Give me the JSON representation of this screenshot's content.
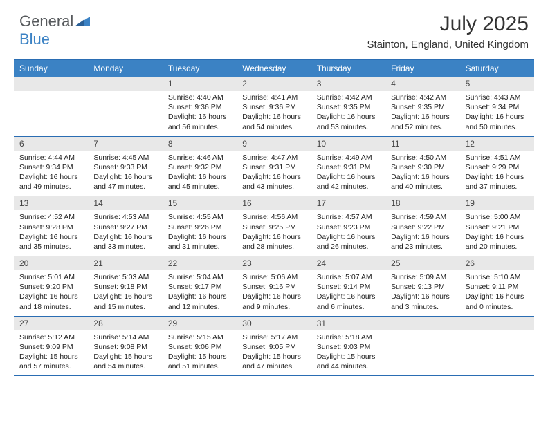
{
  "colors": {
    "header_blue": "#3b82c4",
    "border_blue": "#2a6db3",
    "daynum_bg": "#e8e8e8",
    "text_dark": "#333333",
    "logo_gray": "#56595c"
  },
  "logo": {
    "text_general": "General",
    "text_blue": "Blue"
  },
  "title": {
    "month": "July 2025",
    "location": "Stainton, England, United Kingdom"
  },
  "weekdays": [
    "Sunday",
    "Monday",
    "Tuesday",
    "Wednesday",
    "Thursday",
    "Friday",
    "Saturday"
  ],
  "weeks": [
    {
      "days": [
        {
          "num": "",
          "sunrise": "",
          "sunset": "",
          "daylight": ""
        },
        {
          "num": "",
          "sunrise": "",
          "sunset": "",
          "daylight": ""
        },
        {
          "num": "1",
          "sunrise": "Sunrise: 4:40 AM",
          "sunset": "Sunset: 9:36 PM",
          "daylight": "Daylight: 16 hours and 56 minutes."
        },
        {
          "num": "2",
          "sunrise": "Sunrise: 4:41 AM",
          "sunset": "Sunset: 9:36 PM",
          "daylight": "Daylight: 16 hours and 54 minutes."
        },
        {
          "num": "3",
          "sunrise": "Sunrise: 4:42 AM",
          "sunset": "Sunset: 9:35 PM",
          "daylight": "Daylight: 16 hours and 53 minutes."
        },
        {
          "num": "4",
          "sunrise": "Sunrise: 4:42 AM",
          "sunset": "Sunset: 9:35 PM",
          "daylight": "Daylight: 16 hours and 52 minutes."
        },
        {
          "num": "5",
          "sunrise": "Sunrise: 4:43 AM",
          "sunset": "Sunset: 9:34 PM",
          "daylight": "Daylight: 16 hours and 50 minutes."
        }
      ]
    },
    {
      "days": [
        {
          "num": "6",
          "sunrise": "Sunrise: 4:44 AM",
          "sunset": "Sunset: 9:34 PM",
          "daylight": "Daylight: 16 hours and 49 minutes."
        },
        {
          "num": "7",
          "sunrise": "Sunrise: 4:45 AM",
          "sunset": "Sunset: 9:33 PM",
          "daylight": "Daylight: 16 hours and 47 minutes."
        },
        {
          "num": "8",
          "sunrise": "Sunrise: 4:46 AM",
          "sunset": "Sunset: 9:32 PM",
          "daylight": "Daylight: 16 hours and 45 minutes."
        },
        {
          "num": "9",
          "sunrise": "Sunrise: 4:47 AM",
          "sunset": "Sunset: 9:31 PM",
          "daylight": "Daylight: 16 hours and 43 minutes."
        },
        {
          "num": "10",
          "sunrise": "Sunrise: 4:49 AM",
          "sunset": "Sunset: 9:31 PM",
          "daylight": "Daylight: 16 hours and 42 minutes."
        },
        {
          "num": "11",
          "sunrise": "Sunrise: 4:50 AM",
          "sunset": "Sunset: 9:30 PM",
          "daylight": "Daylight: 16 hours and 40 minutes."
        },
        {
          "num": "12",
          "sunrise": "Sunrise: 4:51 AM",
          "sunset": "Sunset: 9:29 PM",
          "daylight": "Daylight: 16 hours and 37 minutes."
        }
      ]
    },
    {
      "days": [
        {
          "num": "13",
          "sunrise": "Sunrise: 4:52 AM",
          "sunset": "Sunset: 9:28 PM",
          "daylight": "Daylight: 16 hours and 35 minutes."
        },
        {
          "num": "14",
          "sunrise": "Sunrise: 4:53 AM",
          "sunset": "Sunset: 9:27 PM",
          "daylight": "Daylight: 16 hours and 33 minutes."
        },
        {
          "num": "15",
          "sunrise": "Sunrise: 4:55 AM",
          "sunset": "Sunset: 9:26 PM",
          "daylight": "Daylight: 16 hours and 31 minutes."
        },
        {
          "num": "16",
          "sunrise": "Sunrise: 4:56 AM",
          "sunset": "Sunset: 9:25 PM",
          "daylight": "Daylight: 16 hours and 28 minutes."
        },
        {
          "num": "17",
          "sunrise": "Sunrise: 4:57 AM",
          "sunset": "Sunset: 9:23 PM",
          "daylight": "Daylight: 16 hours and 26 minutes."
        },
        {
          "num": "18",
          "sunrise": "Sunrise: 4:59 AM",
          "sunset": "Sunset: 9:22 PM",
          "daylight": "Daylight: 16 hours and 23 minutes."
        },
        {
          "num": "19",
          "sunrise": "Sunrise: 5:00 AM",
          "sunset": "Sunset: 9:21 PM",
          "daylight": "Daylight: 16 hours and 20 minutes."
        }
      ]
    },
    {
      "days": [
        {
          "num": "20",
          "sunrise": "Sunrise: 5:01 AM",
          "sunset": "Sunset: 9:20 PM",
          "daylight": "Daylight: 16 hours and 18 minutes."
        },
        {
          "num": "21",
          "sunrise": "Sunrise: 5:03 AM",
          "sunset": "Sunset: 9:18 PM",
          "daylight": "Daylight: 16 hours and 15 minutes."
        },
        {
          "num": "22",
          "sunrise": "Sunrise: 5:04 AM",
          "sunset": "Sunset: 9:17 PM",
          "daylight": "Daylight: 16 hours and 12 minutes."
        },
        {
          "num": "23",
          "sunrise": "Sunrise: 5:06 AM",
          "sunset": "Sunset: 9:16 PM",
          "daylight": "Daylight: 16 hours and 9 minutes."
        },
        {
          "num": "24",
          "sunrise": "Sunrise: 5:07 AM",
          "sunset": "Sunset: 9:14 PM",
          "daylight": "Daylight: 16 hours and 6 minutes."
        },
        {
          "num": "25",
          "sunrise": "Sunrise: 5:09 AM",
          "sunset": "Sunset: 9:13 PM",
          "daylight": "Daylight: 16 hours and 3 minutes."
        },
        {
          "num": "26",
          "sunrise": "Sunrise: 5:10 AM",
          "sunset": "Sunset: 9:11 PM",
          "daylight": "Daylight: 16 hours and 0 minutes."
        }
      ]
    },
    {
      "days": [
        {
          "num": "27",
          "sunrise": "Sunrise: 5:12 AM",
          "sunset": "Sunset: 9:09 PM",
          "daylight": "Daylight: 15 hours and 57 minutes."
        },
        {
          "num": "28",
          "sunrise": "Sunrise: 5:14 AM",
          "sunset": "Sunset: 9:08 PM",
          "daylight": "Daylight: 15 hours and 54 minutes."
        },
        {
          "num": "29",
          "sunrise": "Sunrise: 5:15 AM",
          "sunset": "Sunset: 9:06 PM",
          "daylight": "Daylight: 15 hours and 51 minutes."
        },
        {
          "num": "30",
          "sunrise": "Sunrise: 5:17 AM",
          "sunset": "Sunset: 9:05 PM",
          "daylight": "Daylight: 15 hours and 47 minutes."
        },
        {
          "num": "31",
          "sunrise": "Sunrise: 5:18 AM",
          "sunset": "Sunset: 9:03 PM",
          "daylight": "Daylight: 15 hours and 44 minutes."
        },
        {
          "num": "",
          "sunrise": "",
          "sunset": "",
          "daylight": ""
        },
        {
          "num": "",
          "sunrise": "",
          "sunset": "",
          "daylight": ""
        }
      ]
    }
  ]
}
